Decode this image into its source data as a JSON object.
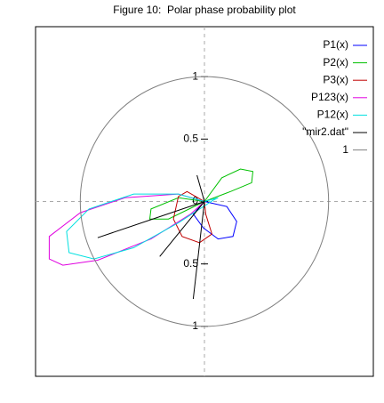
{
  "chart_data": {
    "type": "polar",
    "title": "Figure 10:  Polar phase probability plot",
    "xlim": [
      -1.36,
      1.36
    ],
    "ylim": [
      -1.4,
      1.4
    ],
    "yticks": [
      {
        "value": -1,
        "label": "1"
      },
      {
        "value": -0.5,
        "label": "0.5"
      },
      0,
      0.5,
      1
    ],
    "grid": true,
    "legend": "top-right",
    "series": [
      {
        "name": "P1(x)",
        "color": "#0000ff",
        "x": [
          0,
          0.18,
          0.26,
          0.23,
          0.11,
          -0.01,
          -0.09,
          0
        ],
        "y": [
          0,
          -0.04,
          -0.16,
          -0.28,
          -0.3,
          -0.21,
          -0.1,
          0
        ]
      },
      {
        "name": "P2(x)",
        "color": "#00c000",
        "x": [
          0,
          0.14,
          0.29,
          0.39,
          0.38,
          0.21,
          0,
          -0.21,
          -0.43,
          -0.44,
          -0.29,
          0
        ],
        "y": [
          0,
          0.19,
          0.26,
          0.24,
          0.15,
          0.08,
          0,
          0.03,
          -0.06,
          -0.14,
          -0.14,
          0
        ]
      },
      {
        "name": "P3(x)",
        "color": "#c00000",
        "x": [
          0,
          -0.14,
          -0.21,
          -0.25,
          -0.18,
          -0.04,
          0.06,
          0.01,
          0
        ],
        "y": [
          0,
          0.08,
          0.04,
          -0.14,
          -0.28,
          -0.33,
          -0.26,
          -0.1,
          0
        ]
      },
      {
        "name": "P123(x)",
        "color": "#e000e0",
        "x": [
          0,
          -0.21,
          -0.64,
          -1,
          -1.25,
          -1.25,
          -1.14,
          -0.86,
          -0.43,
          -0.11,
          0
        ],
        "y": [
          0,
          0.06,
          0.03,
          -0.09,
          -0.28,
          -0.46,
          -0.51,
          -0.47,
          -0.3,
          -0.1,
          0
        ]
      },
      {
        "name": "P12(x)",
        "color": "#00e0e0",
        "x": [
          0,
          -0.21,
          -0.57,
          -0.93,
          -1.11,
          -1.09,
          -0.89,
          -0.57,
          -0.21,
          0.07,
          0.11,
          0
        ],
        "y": [
          0,
          0.06,
          0.06,
          -0.06,
          -0.24,
          -0.41,
          -0.46,
          -0.37,
          -0.17,
          0.01,
          0.03,
          0
        ]
      },
      {
        "name": "\"mir2.dat\"",
        "color": "#000000",
        "x": [
          0,
          -0.86,
          null,
          0,
          -0.36,
          null,
          0,
          -0.09,
          null,
          0,
          -0.06
        ],
        "y": [
          0,
          -0.29,
          null,
          0,
          -0.44,
          null,
          0,
          -0.78,
          null,
          0,
          0.21
        ]
      },
      {
        "name": "1",
        "color": "#808080",
        "radius": 1
      }
    ]
  }
}
